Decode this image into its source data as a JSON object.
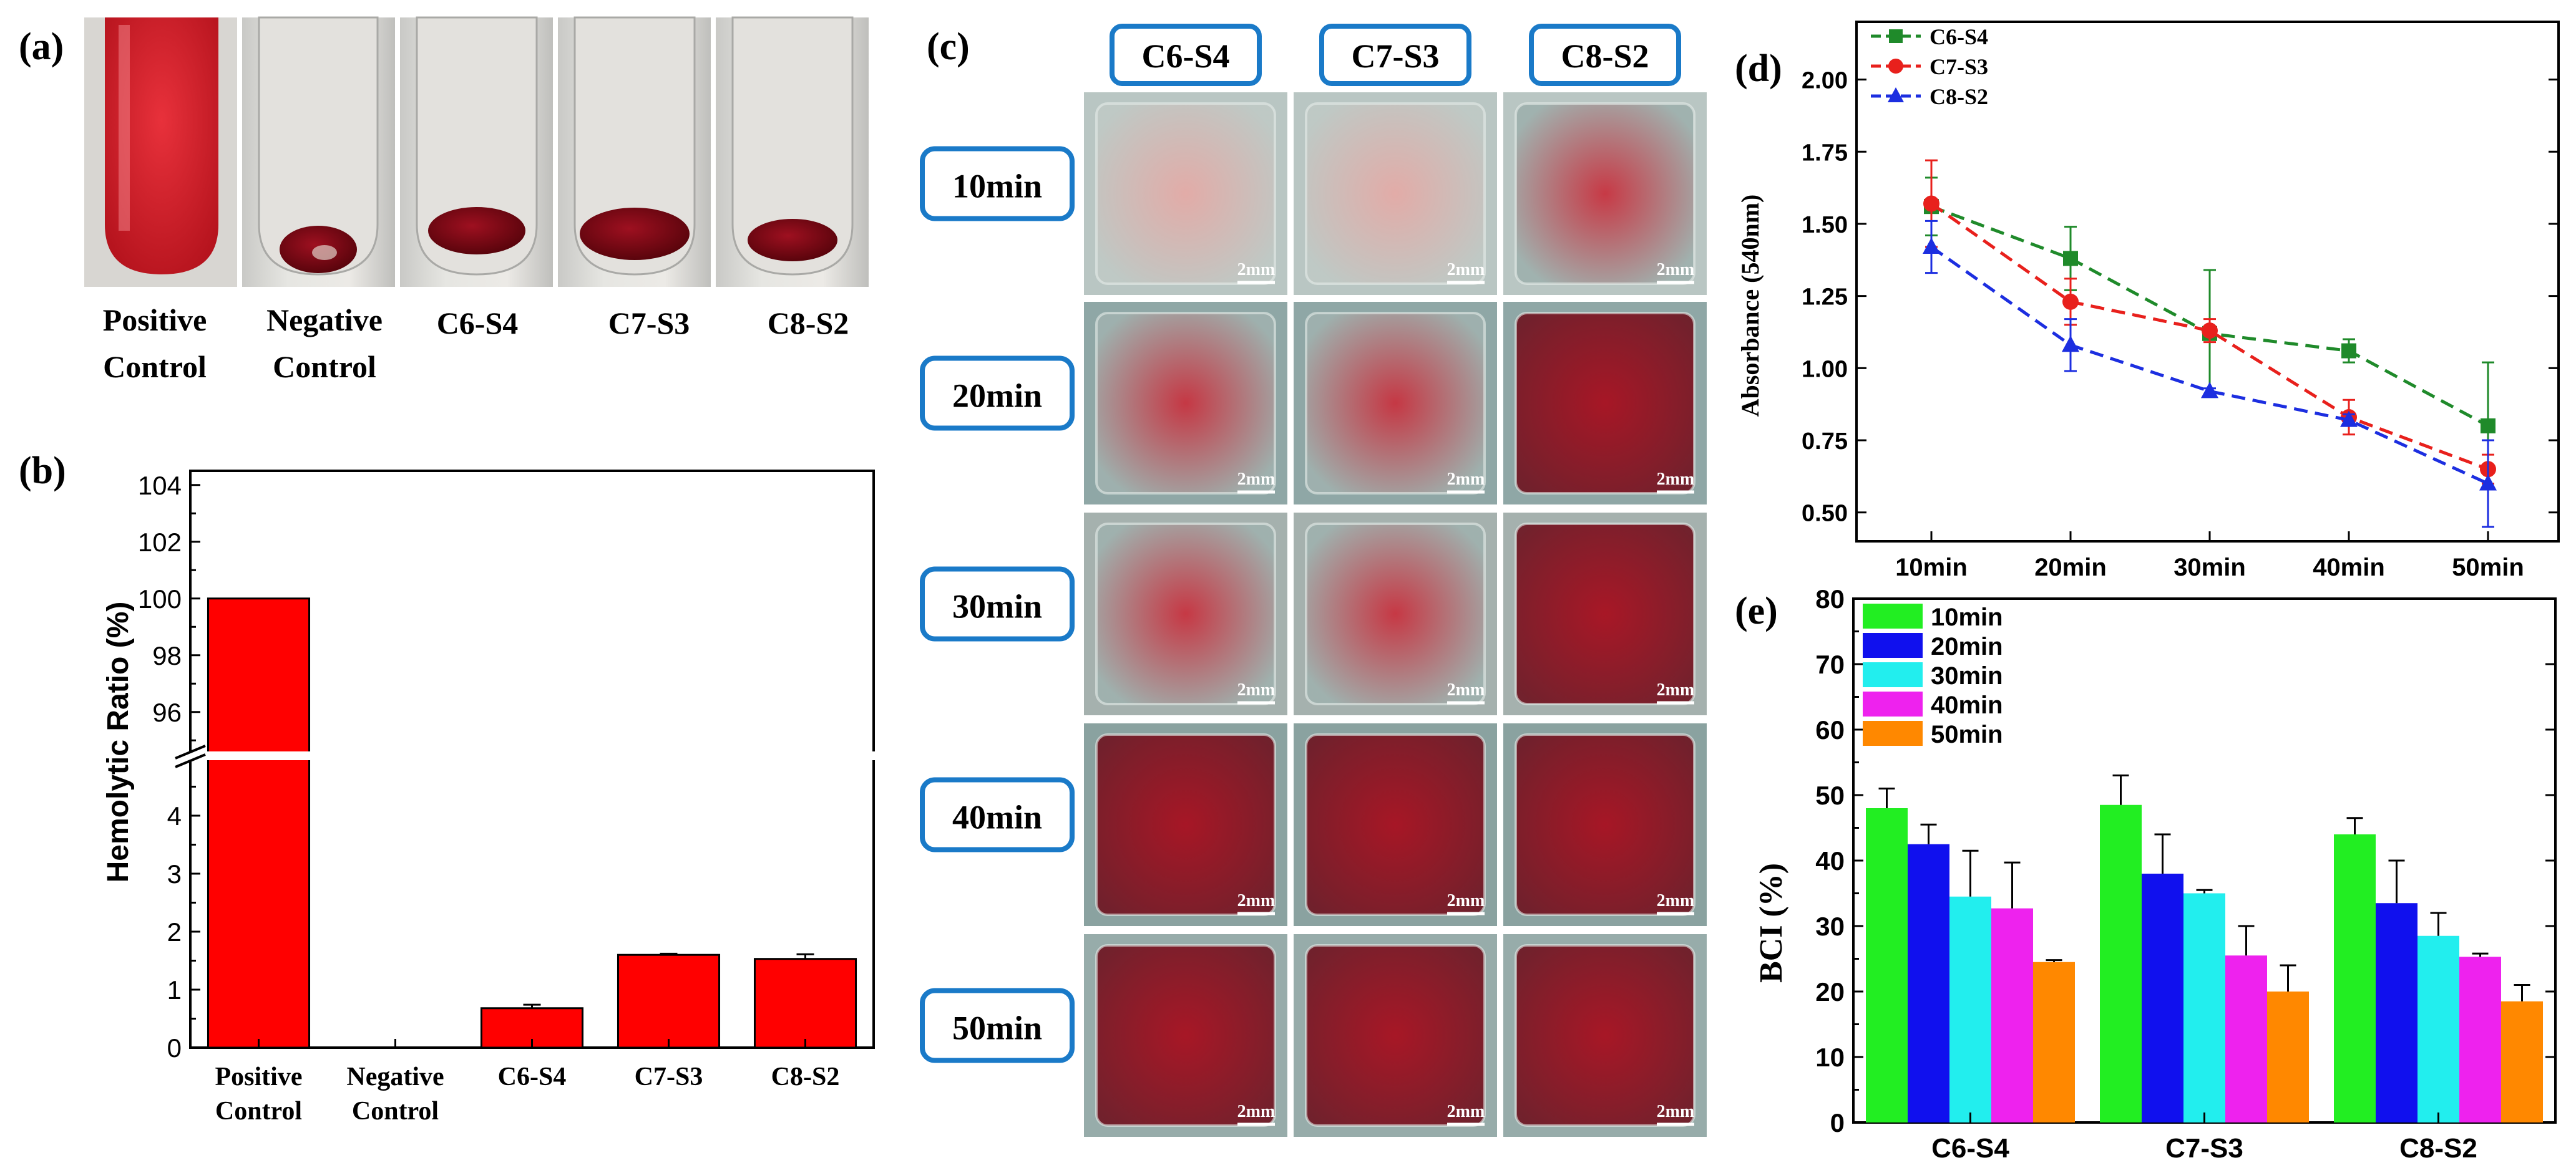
{
  "panels": {
    "a": "(a)",
    "b": "(b)",
    "c": "(c)",
    "d": "(d)",
    "e": "(e)"
  },
  "panel_a": {
    "tubes": [
      {
        "line1": "Positive",
        "line2": "Control"
      },
      {
        "line1": "Negative",
        "line2": "Control"
      },
      {
        "line1": "C6-S4",
        "line2": ""
      },
      {
        "line1": "C7-S3",
        "line2": ""
      },
      {
        "line1": "C8-S2",
        "line2": ""
      }
    ]
  },
  "panel_c": {
    "columns": [
      "C6-S4",
      "C7-S3",
      "C8-S2"
    ],
    "rows": [
      "10min",
      "20min",
      "30min",
      "40min",
      "50min"
    ],
    "scale_bar": "2mm"
  },
  "colors": {
    "bar_red": "#ff0000",
    "frame_blue": "#1a7ac8",
    "c6": "#1f8a2a",
    "c7": "#e8201c",
    "c8": "#1c2ee0",
    "t10": "#22ee22",
    "t20": "#1010ee",
    "t30": "#22eeee",
    "t40": "#ee22ee",
    "t50": "#ff8800"
  },
  "chart_data": [
    {
      "type": "bar",
      "panel": "b",
      "ylabel": "Hemolytic Ratio (%)",
      "categories": [
        {
          "line1": "Positive",
          "line2": "Control"
        },
        {
          "line1": "Negative",
          "line2": "Control"
        },
        {
          "line1": "C6-S4",
          "line2": ""
        },
        {
          "line1": "C7-S3",
          "line2": ""
        },
        {
          "line1": "C8-S2",
          "line2": ""
        }
      ],
      "values": [
        100,
        0,
        0.68,
        1.6,
        1.53
      ],
      "errors": [
        0,
        0,
        0.06,
        0.02,
        0.08
      ],
      "axis_break": true,
      "ylim_lower": [
        0,
        5
      ],
      "ylim_upper": [
        94.5,
        104.5
      ],
      "yticks_lower": [
        "0",
        "1",
        "2",
        "3",
        "4"
      ],
      "yticks_upper": [
        "96",
        "98",
        "100",
        "102",
        "104"
      ]
    },
    {
      "type": "line",
      "panel": "d",
      "ylabel": "Absorbance (540nm)",
      "x": [
        "10min",
        "20min",
        "30min",
        "40min",
        "50min"
      ],
      "ylim": [
        0.4,
        2.2
      ],
      "yticks": [
        "0.50",
        "0.75",
        "1.00",
        "1.25",
        "1.50",
        "1.75",
        "2.00"
      ],
      "legend_position": "top-left",
      "series": [
        {
          "name": "C6-S4",
          "marker": "square",
          "values": [
            1.56,
            1.38,
            1.12,
            1.06,
            0.8
          ],
          "errors": [
            0.1,
            0.11,
            0.22,
            0.04,
            0.22
          ]
        },
        {
          "name": "C7-S3",
          "marker": "circle",
          "values": [
            1.57,
            1.23,
            1.13,
            0.83,
            0.65
          ],
          "errors": [
            0.15,
            0.08,
            0.04,
            0.06,
            0.05
          ]
        },
        {
          "name": "C8-S2",
          "marker": "triangle",
          "values": [
            1.42,
            1.08,
            0.92,
            0.82,
            0.6
          ],
          "errors": [
            0.09,
            0.09,
            0.01,
            0.02,
            0.15
          ]
        }
      ]
    },
    {
      "type": "bar",
      "panel": "e",
      "ylabel": "BCI (%)",
      "categories": [
        "C6-S4",
        "C7-S3",
        "C8-S2"
      ],
      "ylim": [
        0,
        80
      ],
      "yticks": [
        "0",
        "10",
        "20",
        "30",
        "40",
        "50",
        "60",
        "70",
        "80"
      ],
      "legend_position": "top-left",
      "series": [
        {
          "name": "10min",
          "values": [
            48,
            48.5,
            44
          ],
          "errors": [
            3,
            4.5,
            2.5
          ]
        },
        {
          "name": "20min",
          "values": [
            42.5,
            38,
            33.5
          ],
          "errors": [
            3,
            6,
            6.5
          ]
        },
        {
          "name": "30min",
          "values": [
            34.5,
            35,
            28.5
          ],
          "errors": [
            7,
            0.5,
            3.5
          ]
        },
        {
          "name": "40min",
          "values": [
            32.7,
            25.5,
            25.3
          ],
          "errors": [
            7,
            4.5,
            0.5
          ]
        },
        {
          "name": "50min",
          "values": [
            24.5,
            20,
            18.5
          ],
          "errors": [
            0.3,
            4,
            2.5
          ]
        }
      ]
    }
  ]
}
